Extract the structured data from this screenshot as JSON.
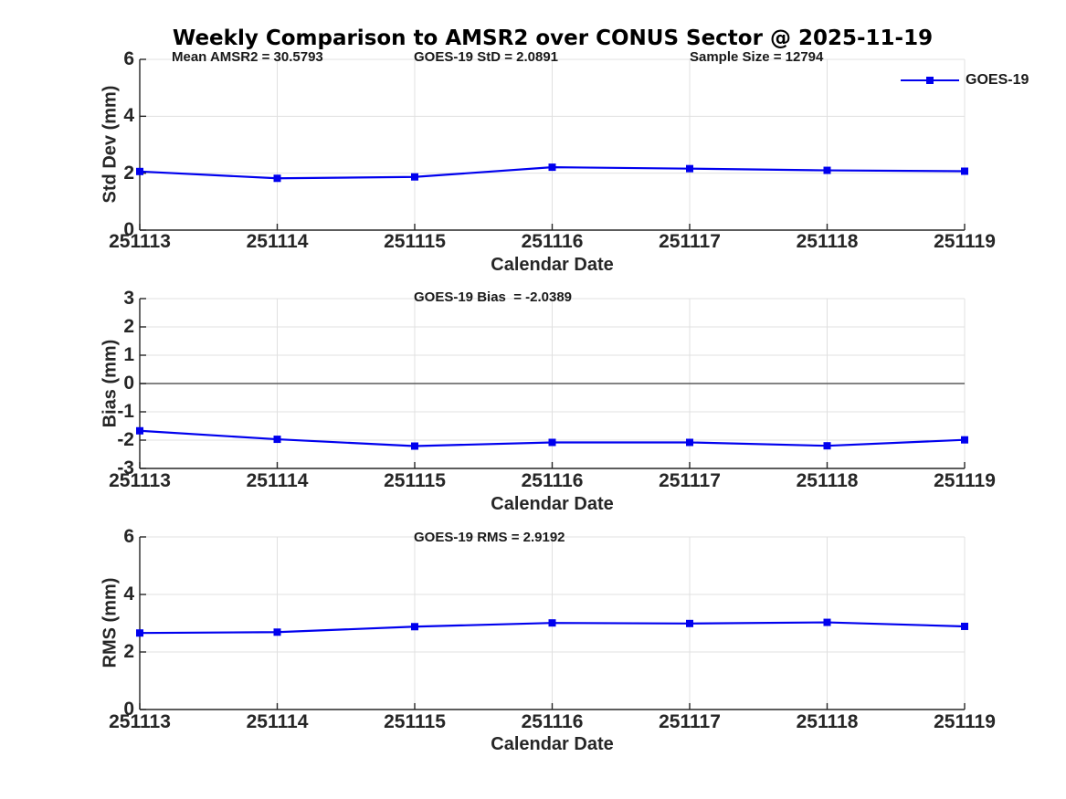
{
  "title": "Weekly Comparison to AMSR2 over CONUS Sector @ 2025-11-19",
  "legend": {
    "label": "GOES-19",
    "series_color": "#0000ee"
  },
  "chart_data": [
    {
      "type": "line",
      "subplot": "std_dev",
      "annotations": [
        "Mean AMSR2 = 30.5793",
        "GOES-19 StD = 2.0891",
        "Sample Size = 12794"
      ],
      "x": [
        "251113",
        "251114",
        "251115",
        "251116",
        "251117",
        "251118",
        "251119"
      ],
      "series": [
        {
          "name": "GOES-19",
          "color": "#0000ee",
          "values": [
            2.06,
            1.82,
            1.87,
            2.21,
            2.16,
            2.1,
            2.07
          ]
        }
      ],
      "xlabel": "Calendar Date",
      "ylabel": "Std Dev (mm)",
      "ylim": [
        0,
        6
      ],
      "yticks": [
        0,
        2,
        4,
        6
      ],
      "grid": true,
      "legend_position": "top-right"
    },
    {
      "type": "line",
      "subplot": "bias",
      "annotations": [
        "GOES-19 Bias  = -2.0389"
      ],
      "x": [
        "251113",
        "251114",
        "251115",
        "251116",
        "251117",
        "251118",
        "251119"
      ],
      "series": [
        {
          "name": "GOES-19",
          "color": "#0000ee",
          "values": [
            -1.67,
            -1.97,
            -2.21,
            -2.08,
            -2.08,
            -2.2,
            -1.99
          ]
        }
      ],
      "xlabel": "Calendar Date",
      "ylabel": "Bias (mm)",
      "ylim": [
        -3,
        3
      ],
      "yticks": [
        -3,
        -2,
        -1,
        0,
        1,
        2,
        3
      ],
      "zero_line": true,
      "grid": true
    },
    {
      "type": "line",
      "subplot": "rms",
      "annotations": [
        "GOES-19 RMS = 2.9192"
      ],
      "x": [
        "251113",
        "251114",
        "251115",
        "251116",
        "251117",
        "251118",
        "251119"
      ],
      "series": [
        {
          "name": "GOES-19",
          "color": "#0000ee",
          "values": [
            2.66,
            2.69,
            2.88,
            3.01,
            2.99,
            3.03,
            2.89
          ]
        }
      ],
      "xlabel": "Calendar Date",
      "ylabel": "RMS (mm)",
      "ylim": [
        0,
        6
      ],
      "yticks": [
        0,
        2,
        4,
        6
      ],
      "grid": true
    }
  ]
}
